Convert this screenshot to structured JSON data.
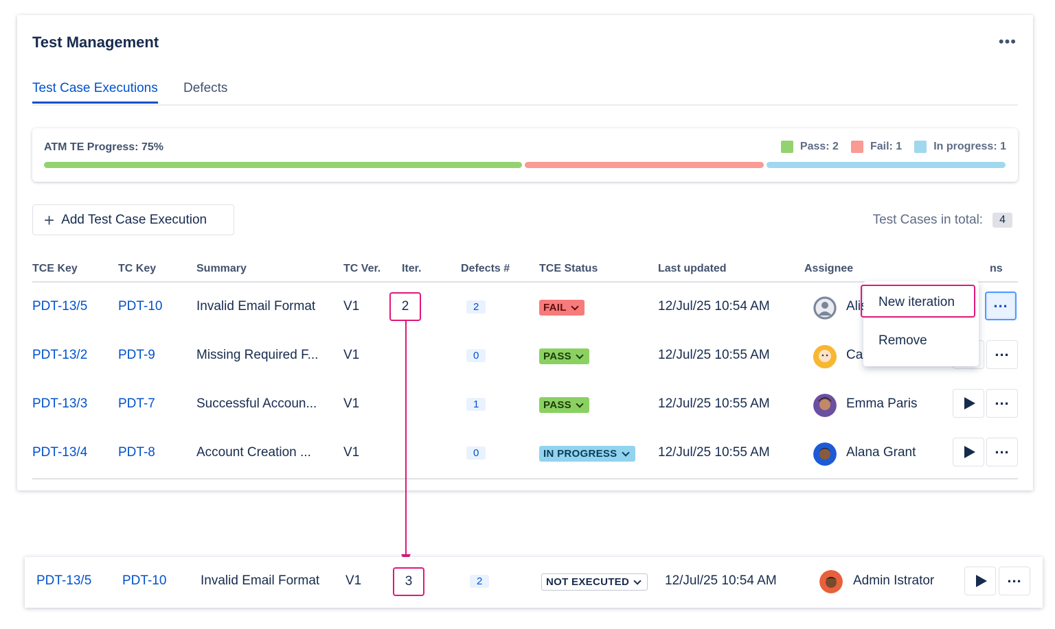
{
  "header": {
    "title": "Test Management",
    "more": "•••"
  },
  "tabs": [
    {
      "label": "Test Case Executions",
      "active": true
    },
    {
      "label": "Defects",
      "active": false
    }
  ],
  "progress": {
    "label": "ATM TE Progress: 75%",
    "percent": 75,
    "legend": [
      {
        "label": "Pass: 2",
        "color": "#94d270"
      },
      {
        "label": "Fail: 1",
        "color": "#f99a94"
      },
      {
        "label": "In progress: 1",
        "color": "#a0d8ef"
      }
    ],
    "segments": [
      {
        "name": "pass",
        "fraction": 0.5,
        "color": "#94d270"
      },
      {
        "name": "fail",
        "fraction": 0.25,
        "color": "#f99a94"
      },
      {
        "name": "in-progress",
        "fraction": 0.25,
        "color": "#a0d8ef"
      }
    ]
  },
  "toolbar": {
    "add_label": "Add Test Case Execution",
    "total_label": "Test Cases in total:",
    "total_value": "4"
  },
  "table": {
    "columns": [
      "TCE Key",
      "TC Key",
      "Summary",
      "TC Ver.",
      "Iter.",
      "Defects #",
      "TCE Status",
      "Last updated",
      "Assignee",
      "ns"
    ],
    "rows": [
      {
        "tce_key": "PDT-13/5",
        "tc_key": "PDT-10",
        "summary": "Invalid Email Format",
        "tc_ver": "V1",
        "iter": "2",
        "defects": "2",
        "status": "FAIL",
        "updated": "12/Jul/25 10:54 AM",
        "assignee": "Alis"
      },
      {
        "tce_key": "PDT-13/2",
        "tc_key": "PDT-9",
        "summary": "Missing Required F...",
        "tc_ver": "V1",
        "iter": "",
        "defects": "0",
        "status": "PASS",
        "updated": "12/Jul/25 10:55 AM",
        "assignee": "Cassi Owens"
      },
      {
        "tce_key": "PDT-13/3",
        "tc_key": "PDT-7",
        "summary": "Successful Accoun...",
        "tc_ver": "V1",
        "iter": "",
        "defects": "1",
        "status": "PASS",
        "updated": "12/Jul/25 10:55 AM",
        "assignee": "Emma Paris"
      },
      {
        "tce_key": "PDT-13/4",
        "tc_key": "PDT-8",
        "summary": "Account Creation ...",
        "tc_ver": "V1",
        "iter": "",
        "defects": "0",
        "status": "IN PROGRESS",
        "updated": "12/Jul/25 10:55 AM",
        "assignee": "Alana Grant"
      }
    ]
  },
  "menu": {
    "items": [
      "New iteration",
      "Remove"
    ]
  },
  "result_row": {
    "tce_key": "PDT-13/5",
    "tc_key": "PDT-10",
    "summary": "Invalid Email Format",
    "tc_ver": "V1",
    "iter": "3",
    "defects": "2",
    "status": "NOT EXECUTED",
    "updated": "12/Jul/25 10:54 AM",
    "assignee": "Admin Istrator"
  },
  "colors": {
    "accent": "#0052cc",
    "highlight": "#e0177a"
  }
}
